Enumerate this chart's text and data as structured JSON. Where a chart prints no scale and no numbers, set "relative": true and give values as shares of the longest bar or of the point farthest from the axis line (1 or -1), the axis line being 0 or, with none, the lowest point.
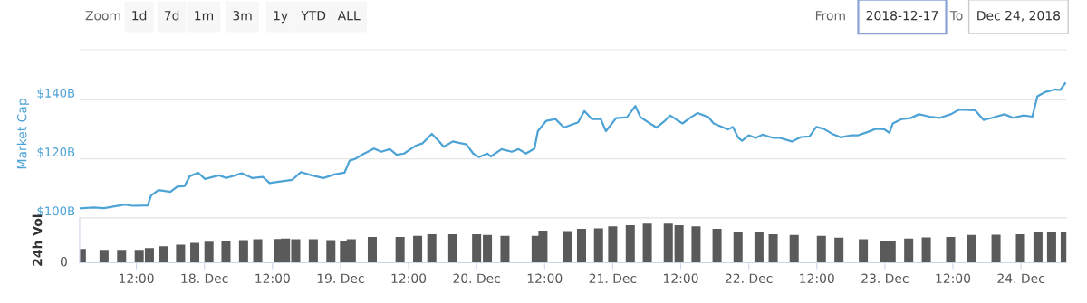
{
  "chart_data": [
    {
      "type": "line",
      "ylabel": "Market Cap",
      "tick_labels": "y",
      "grid": "y",
      "legend": false,
      "marker": "none",
      "line_style": "solid",
      "annotations": [
        "Zoom",
        "1d",
        "7d",
        "1m",
        "3m",
        "1y",
        "YTD",
        "ALL",
        "From",
        "2018-12-17",
        "To",
        "Dec 24, 2018"
      ],
      "xlim": [
        "2018-12-17T02:00",
        "2018-12-24T08:00"
      ],
      "ylim": [
        100,
        157
      ],
      "yticks": [
        {
          "value": 100,
          "label": "$100B"
        },
        {
          "value": 120,
          "label": "$120B"
        },
        {
          "value": 140,
          "label": "$140B"
        }
      ],
      "series": [
        {
          "color": "#4da3d5",
          "x": [
            "2018-12-17T02:00",
            "2018-12-17T04:30",
            "2018-12-17T06:18",
            "2018-12-17T10:00",
            "2018-12-17T11:18",
            "2018-12-17T14:00",
            "2018-12-17T14:36",
            "2018-12-17T15:54",
            "2018-12-17T18:00",
            "2018-12-17T19:12",
            "2018-12-17T20:30",
            "2018-12-17T21:24",
            "2018-12-17T22:54",
            "2018-12-18T00:06",
            "2018-12-18T02:36",
            "2018-12-18T03:48",
            "2018-12-18T06:36",
            "2018-12-18T08:24",
            "2018-12-18T10:18",
            "2018-12-18T11:30",
            "2018-12-18T13:42",
            "2018-12-18T15:30",
            "2018-12-18T17:00",
            "2018-12-18T18:54",
            "2018-12-18T21:00",
            "2018-12-18T22:54",
            "2018-12-19T00:42",
            "2018-12-19T01:36",
            "2018-12-19T02:36",
            "2018-12-19T03:48",
            "2018-12-19T05:54",
            "2018-12-19T07:12",
            "2018-12-19T08:42",
            "2018-12-19T09:54",
            "2018-12-19T11:12",
            "2018-12-19T13:18",
            "2018-12-19T14:30",
            "2018-12-19T16:06",
            "2018-12-19T17:18",
            "2018-12-19T18:12",
            "2018-12-19T19:48",
            "2018-12-19T22:12",
            "2018-12-19T23:24",
            "2018-12-20T00:24",
            "2018-12-20T01:54",
            "2018-12-20T02:30",
            "2018-12-20T04:24",
            "2018-12-20T06:12",
            "2018-12-20T07:24",
            "2018-12-20T08:42",
            "2018-12-20T10:12",
            "2018-12-20T10:48",
            "2018-12-20T12:18",
            "2018-12-20T13:54",
            "2018-12-20T15:24",
            "2018-12-20T17:54",
            "2018-12-20T19:00",
            "2018-12-20T20:18",
            "2018-12-20T21:54",
            "2018-12-20T22:48",
            "2018-12-21T00:36",
            "2018-12-21T02:30",
            "2018-12-21T04:00",
            "2018-12-21T04:54",
            "2018-12-21T07:42",
            "2018-12-21T09:12",
            "2018-12-21T10:06",
            "2018-12-21T12:18",
            "2018-12-21T13:48",
            "2018-12-21T15:00",
            "2018-12-21T16:54",
            "2018-12-21T17:48",
            "2018-12-21T20:18",
            "2018-12-21T21:12",
            "2018-12-21T22:06",
            "2018-12-21T22:48",
            "2018-12-22T00:00",
            "2018-12-22T01:12",
            "2018-12-22T02:24",
            "2018-12-22T04:18",
            "2018-12-22T05:30",
            "2018-12-22T07:36",
            "2018-12-22T09:12",
            "2018-12-22T10:42",
            "2018-12-22T11:54",
            "2018-12-22T13:12",
            "2018-12-22T14:42",
            "2018-12-22T16:12",
            "2018-12-22T18:06",
            "2018-12-22T19:18",
            "2018-12-22T21:06",
            "2018-12-22T22:24",
            "2018-12-22T23:54",
            "2018-12-23T00:48",
            "2018-12-23T01:24",
            "2018-12-23T03:00",
            "2018-12-23T04:30",
            "2018-12-23T06:00",
            "2018-12-23T07:54",
            "2018-12-23T09:42",
            "2018-12-23T11:36",
            "2018-12-23T13:06",
            "2018-12-23T15:54",
            "2018-12-23T17:24",
            "2018-12-23T18:54",
            "2018-12-23T21:06",
            "2018-12-23T22:36",
            "2018-12-24T00:30",
            "2018-12-24T02:00",
            "2018-12-24T02:54",
            "2018-12-24T04:12",
            "2018-12-24T06:00",
            "2018-12-24T06:54",
            "2018-12-24T07:48"
          ],
          "values": [
            103.2,
            103.5,
            103.3,
            104.5,
            104.1,
            104.2,
            107.6,
            109.4,
            108.8,
            110.6,
            110.8,
            114.1,
            115.3,
            113.2,
            114.4,
            113.5,
            115.1,
            113.5,
            113.9,
            111.8,
            112.4,
            112.9,
            115.5,
            114.4,
            113.5,
            114.7,
            115.3,
            119.4,
            120.0,
            121.4,
            123.5,
            122.4,
            123.3,
            121.4,
            121.8,
            124.5,
            125.3,
            128.5,
            126.1,
            124.1,
            125.9,
            124.9,
            121.8,
            120.6,
            121.8,
            120.8,
            123.3,
            122.4,
            123.3,
            121.8,
            123.5,
            129.4,
            132.9,
            133.5,
            130.6,
            132.4,
            136.2,
            133.5,
            133.5,
            129.4,
            133.8,
            134.1,
            137.9,
            134.1,
            130.6,
            132.9,
            134.7,
            132.0,
            134.1,
            135.5,
            134.1,
            132.0,
            130.0,
            130.8,
            127.3,
            126.1,
            128.0,
            127.1,
            128.2,
            127.1,
            127.1,
            125.9,
            127.4,
            127.6,
            130.8,
            130.2,
            128.5,
            127.3,
            128.0,
            128.0,
            129.2,
            130.2,
            130.0,
            128.8,
            132.0,
            133.5,
            133.8,
            135.1,
            134.3,
            133.9,
            135.1,
            136.7,
            136.5,
            133.2,
            133.9,
            135.1,
            133.9,
            134.7,
            134.3,
            141.2,
            142.6,
            143.5,
            143.3,
            145.6
          ]
        }
      ]
    },
    {
      "type": "bar",
      "ylabel": "24h Vol",
      "relative": true,
      "tick_labels": "x",
      "annotations": [
        "0"
      ],
      "xlim": [
        "2018-12-17T02:00",
        "2018-12-24T08:00"
      ],
      "xticks": [
        {
          "value": "2018-12-17T12:00",
          "label": "12:00"
        },
        {
          "value": "2018-12-18T00:00",
          "label": "18. Dec"
        },
        {
          "value": "2018-12-18T12:00",
          "label": "12:00"
        },
        {
          "value": "2018-12-19T00:00",
          "label": "19. Dec"
        },
        {
          "value": "2018-12-19T12:00",
          "label": "12:00"
        },
        {
          "value": "2018-12-20T00:00",
          "label": "20. Dec"
        },
        {
          "value": "2018-12-20T12:00",
          "label": "12:00"
        },
        {
          "value": "2018-12-21T00:00",
          "label": "21. Dec"
        },
        {
          "value": "2018-12-21T12:00",
          "label": "12:00"
        },
        {
          "value": "2018-12-22T00:00",
          "label": "22. Dec"
        },
        {
          "value": "2018-12-22T12:00",
          "label": "12:00"
        },
        {
          "value": "2018-12-23T00:00",
          "label": "23. Dec"
        },
        {
          "value": "2018-12-23T12:00",
          "label": "12:00"
        },
        {
          "value": "2018-12-24T00:00",
          "label": "24. Dec"
        }
      ],
      "series": [
        {
          "color": "#5a5a5a",
          "x": [
            "2018-12-17T02:18",
            "2018-12-17T06:18",
            "2018-12-17T09:24",
            "2018-12-17T12:30",
            "2018-12-17T14:18",
            "2018-12-17T16:48",
            "2018-12-17T19:48",
            "2018-12-17T22:18",
            "2018-12-18T00:48",
            "2018-12-18T03:48",
            "2018-12-18T06:54",
            "2018-12-18T09:24",
            "2018-12-18T13:00",
            "2018-12-18T14:18",
            "2018-12-18T16:06",
            "2018-12-18T19:12",
            "2018-12-18T22:18",
            "2018-12-19T00:42",
            "2018-12-19T01:54",
            "2018-12-19T05:36",
            "2018-12-19T10:30",
            "2018-12-19T13:36",
            "2018-12-19T16:06",
            "2018-12-19T19:48",
            "2018-12-20T00:00",
            "2018-12-20T01:54",
            "2018-12-20T05:00",
            "2018-12-20T10:30",
            "2018-12-20T11:42",
            "2018-12-20T16:00",
            "2018-12-20T18:30",
            "2018-12-20T21:30",
            "2018-12-21T00:00",
            "2018-12-21T03:06",
            "2018-12-21T06:06",
            "2018-12-21T09:48",
            "2018-12-21T11:42",
            "2018-12-21T14:42",
            "2018-12-21T18:24",
            "2018-12-21T22:06",
            "2018-12-22T01:48",
            "2018-12-22T04:18",
            "2018-12-22T08:00",
            "2018-12-22T12:48",
            "2018-12-22T15:54",
            "2018-12-22T20:12",
            "2018-12-22T23:54",
            "2018-12-23T01:06",
            "2018-12-23T04:12",
            "2018-12-23T07:18",
            "2018-12-23T11:36",
            "2018-12-23T15:18",
            "2018-12-23T19:36",
            "2018-12-23T23:54",
            "2018-12-24T03:00",
            "2018-12-24T05:24",
            "2018-12-24T07:48"
          ],
          "values": [
            0.35,
            0.33,
            0.33,
            0.33,
            0.375,
            0.42,
            0.46,
            0.51,
            0.54,
            0.55,
            0.58,
            0.6,
            0.61,
            0.62,
            0.6,
            0.6,
            0.58,
            0.55,
            0.6,
            0.66,
            0.66,
            0.69,
            0.73,
            0.73,
            0.73,
            0.71,
            0.69,
            0.69,
            0.82,
            0.81,
            0.87,
            0.88,
            0.93,
            0.96,
            1.0,
            1.0,
            0.96,
            0.93,
            0.87,
            0.79,
            0.78,
            0.73,
            0.71,
            0.69,
            0.64,
            0.6,
            0.56,
            0.55,
            0.62,
            0.65,
            0.66,
            0.71,
            0.72,
            0.73,
            0.78,
            0.79,
            0.78
          ]
        }
      ]
    }
  ]
}
